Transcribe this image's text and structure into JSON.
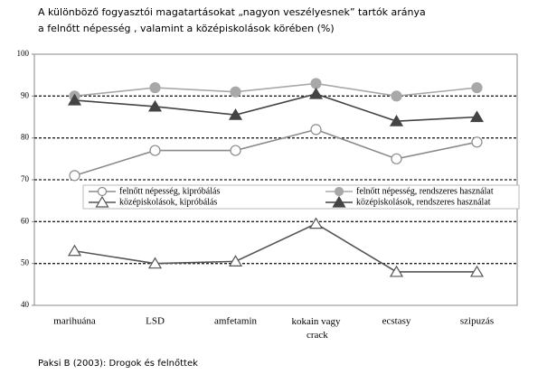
{
  "chart_data": {
    "type": "line",
    "title": "A különböző fogyasztói magatartásokat „nagyon veszélyesnek” tartók aránya",
    "subtitle": "a felnőtt népesség , valamint a középiskolások körében (%)",
    "source": "Paksi B (2003): Drogok és felnőttek",
    "categories": [
      "marihuána",
      "LSD",
      "amfetamin",
      "kokain vagy crack",
      "ecstasy",
      "szipuzás"
    ],
    "series": [
      {
        "name": "felnőtt népesség, kipróbálás",
        "color": "#8a8a8a",
        "marker": "circle",
        "filled": false,
        "values": [
          71,
          77,
          77,
          82,
          75,
          79
        ]
      },
      {
        "name": "felnőtt népesség, rendszeres használat",
        "color": "#a8a8a8",
        "marker": "circle",
        "filled": true,
        "values": [
          90,
          92,
          91,
          93,
          90,
          92
        ]
      },
      {
        "name": "középiskolások, kipróbálás",
        "color": "#555555",
        "marker": "triangle",
        "filled": false,
        "values": [
          53,
          50,
          50.5,
          59.5,
          48,
          48
        ]
      },
      {
        "name": "középiskolások, rendszeres használat",
        "color": "#444444",
        "marker": "triangle",
        "filled": true,
        "values": [
          89,
          87.5,
          85.5,
          90.5,
          84,
          85
        ]
      }
    ],
    "ylim": [
      40,
      100
    ],
    "yticks": [
      40,
      50,
      60,
      70,
      80,
      90,
      100
    ],
    "grid": true,
    "legend": "center"
  }
}
